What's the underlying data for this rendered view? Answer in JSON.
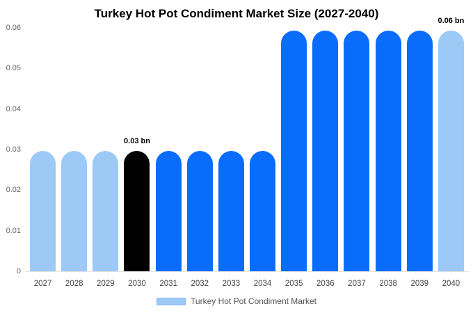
{
  "title": "Turkey Hot Pot Condiment Market Size (2027-2040)",
  "legend": {
    "label": "Turkey Hot Pot Condiment Market"
  },
  "colors": {
    "light_blue": "#9DC9F7",
    "bright_blue": "#0A6CFA",
    "black": "#000000",
    "axis_text": "#666666",
    "baseline": "#E3E3E3"
  },
  "y_axis": {
    "ticks": [
      "0.06",
      "0.05",
      "0.04",
      "0.03",
      "0.02",
      "0.01",
      "0"
    ]
  },
  "chart_data": {
    "type": "bar",
    "title": "Turkey Hot Pot Condiment Market Size (2027-2040)",
    "xlabel": "",
    "ylabel": "",
    "unit": "bn",
    "ylim": [
      0,
      0.06
    ],
    "grid": false,
    "legend_position": "bottom",
    "categories": [
      "2027",
      "2028",
      "2029",
      "2030",
      "2031",
      "2032",
      "2033",
      "2034",
      "2035",
      "2036",
      "2037",
      "2038",
      "2039",
      "2040"
    ],
    "values": [
      0.03,
      0.03,
      0.03,
      0.03,
      0.03,
      0.03,
      0.03,
      0.03,
      0.06,
      0.06,
      0.06,
      0.06,
      0.06,
      0.06
    ],
    "bars": [
      {
        "year": "2027",
        "value": 0.03,
        "color": "#9DC9F7",
        "annotation": ""
      },
      {
        "year": "2028",
        "value": 0.03,
        "color": "#9DC9F7",
        "annotation": ""
      },
      {
        "year": "2029",
        "value": 0.03,
        "color": "#9DC9F7",
        "annotation": ""
      },
      {
        "year": "2030",
        "value": 0.03,
        "color": "#000000",
        "annotation": "0.03 bn"
      },
      {
        "year": "2031",
        "value": 0.03,
        "color": "#0A6CFA",
        "annotation": ""
      },
      {
        "year": "2032",
        "value": 0.03,
        "color": "#0A6CFA",
        "annotation": ""
      },
      {
        "year": "2033",
        "value": 0.03,
        "color": "#0A6CFA",
        "annotation": ""
      },
      {
        "year": "2034",
        "value": 0.03,
        "color": "#0A6CFA",
        "annotation": ""
      },
      {
        "year": "2035",
        "value": 0.06,
        "color": "#0A6CFA",
        "annotation": ""
      },
      {
        "year": "2036",
        "value": 0.06,
        "color": "#0A6CFA",
        "annotation": ""
      },
      {
        "year": "2037",
        "value": 0.06,
        "color": "#0A6CFA",
        "annotation": ""
      },
      {
        "year": "2038",
        "value": 0.06,
        "color": "#0A6CFA",
        "annotation": ""
      },
      {
        "year": "2039",
        "value": 0.06,
        "color": "#0A6CFA",
        "annotation": ""
      },
      {
        "year": "2040",
        "value": 0.06,
        "color": "#9DC9F7",
        "annotation": "0.06 bn"
      }
    ]
  }
}
